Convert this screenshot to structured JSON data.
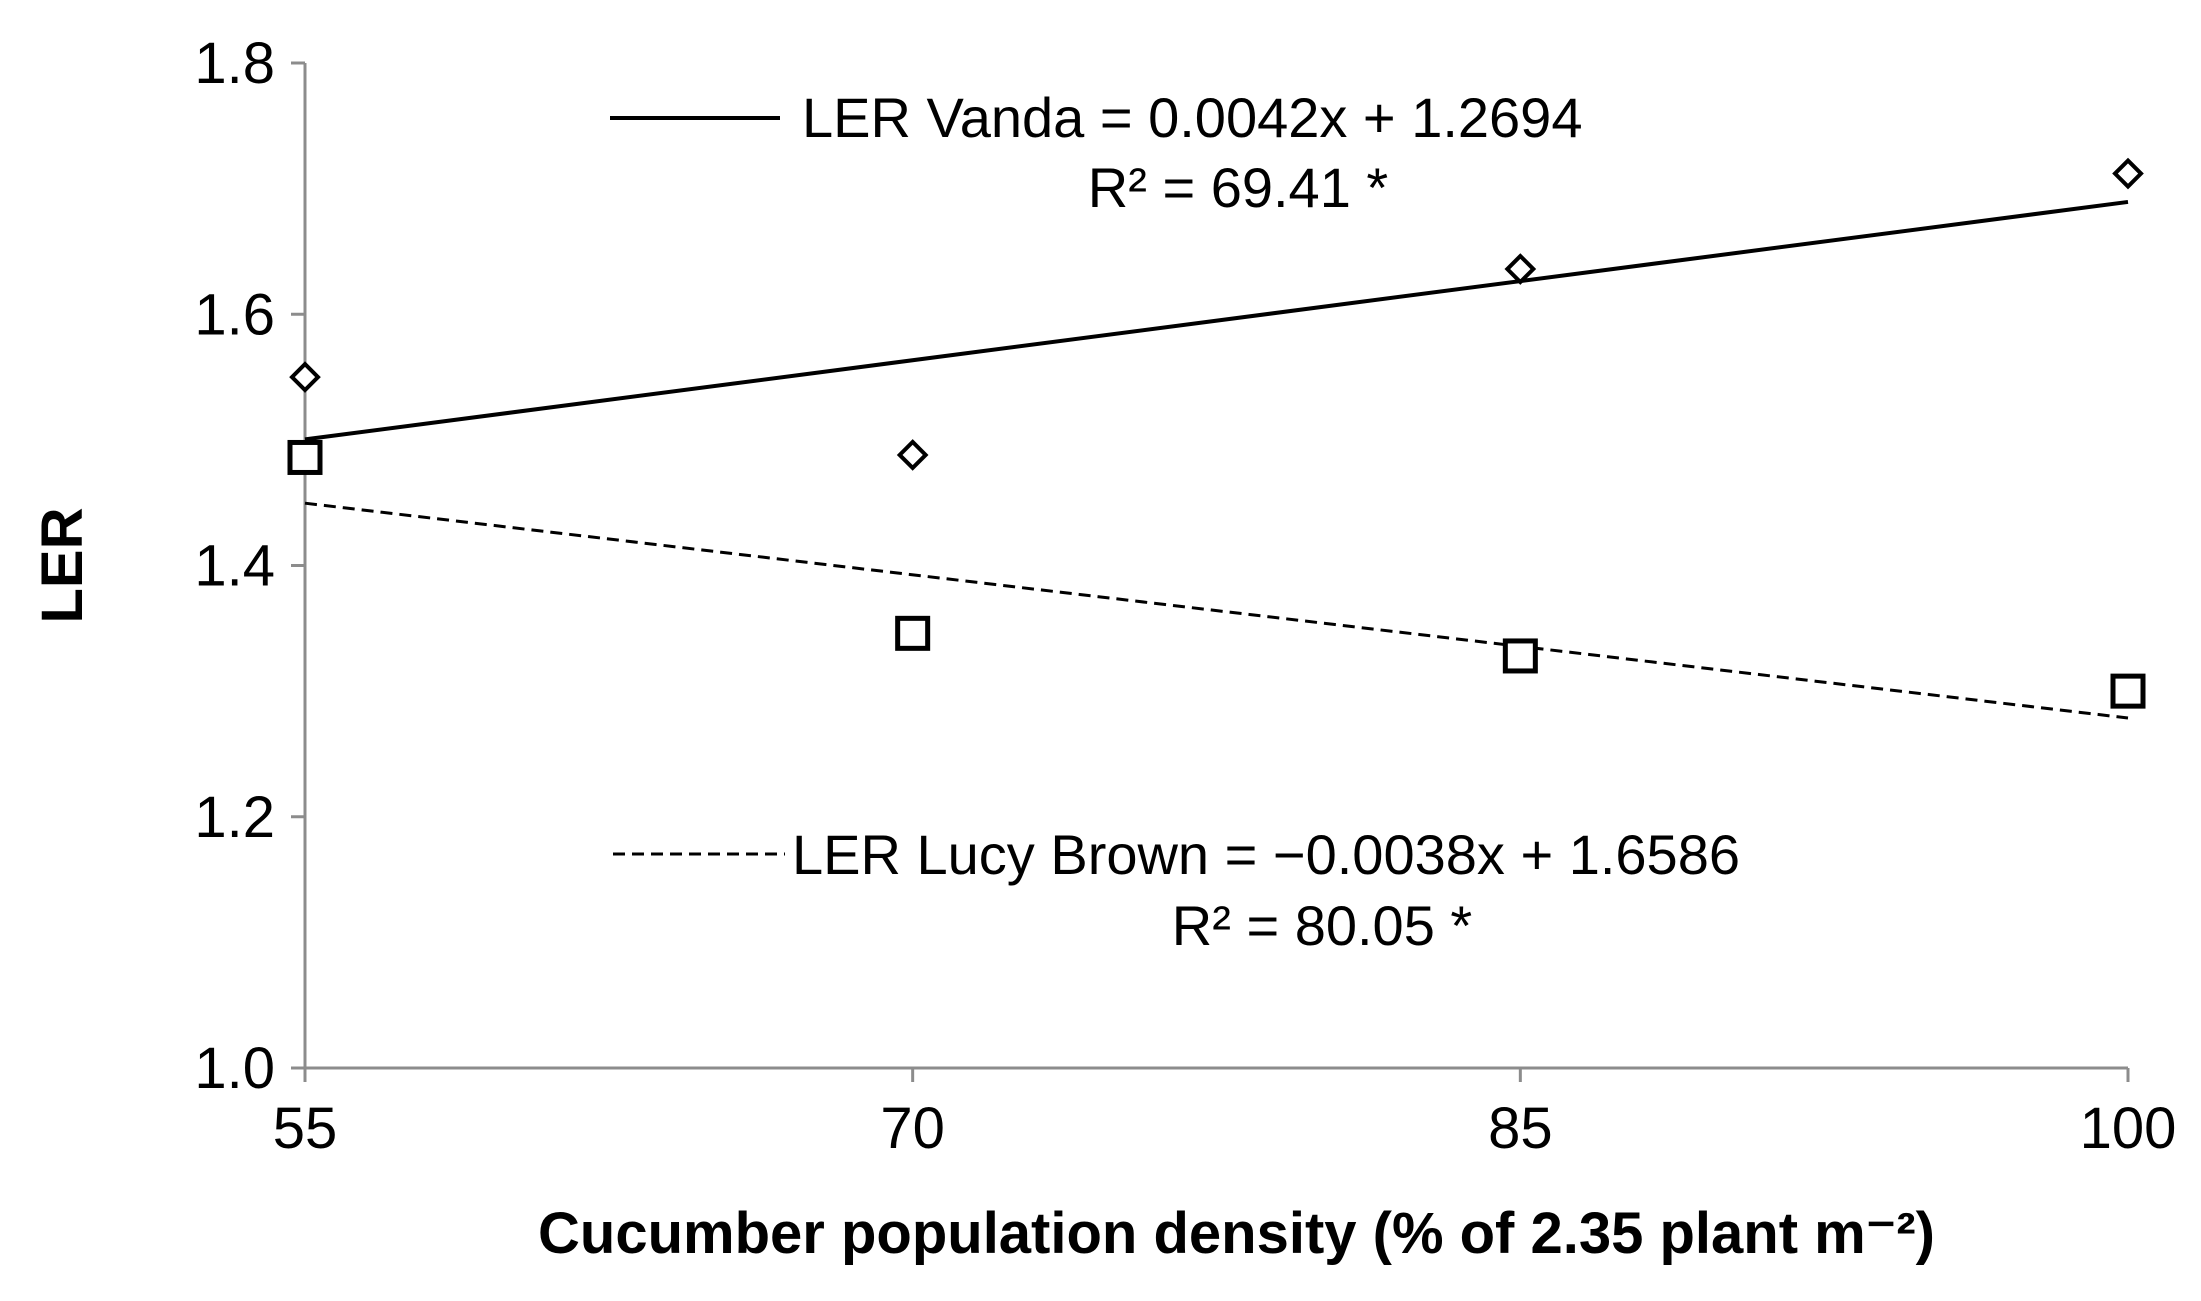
{
  "chart_data": {
    "type": "scatter",
    "title": "",
    "xlabel": "Cucumber population density (% of 2.35 plant m⁻²)",
    "ylabel": "LER",
    "x_ticks": [
      "55",
      "70",
      "85",
      "100"
    ],
    "y_ticks": [
      "1.0",
      "1.2",
      "1.4",
      "1.6",
      "1.8"
    ],
    "xlim": [
      55,
      100
    ],
    "ylim": [
      1.0,
      1.8
    ],
    "grid": false,
    "series": [
      {
        "name": "LER Vanda",
        "marker": "diamond",
        "x": [
          55,
          70,
          85,
          100
        ],
        "y": [
          1.55,
          1.488,
          1.636,
          1.712
        ],
        "trendline": {
          "slope": 0.0042,
          "intercept": 1.2694,
          "style": "solid"
        },
        "equation": "LER Vanda = 0.0042x + 1.2694",
        "r2": "R² = 69.41 *"
      },
      {
        "name": "LER Lucy Brown",
        "marker": "square",
        "x": [
          55,
          70,
          85,
          100
        ],
        "y": [
          1.486,
          1.346,
          1.328,
          1.3
        ],
        "trendline": {
          "slope": -0.0038,
          "intercept": 1.6586,
          "style": "dashed"
        },
        "equation": "LER Lucy Brown = −0.0038x + 1.6586",
        "r2": "R² = 80.05 *"
      }
    ]
  }
}
